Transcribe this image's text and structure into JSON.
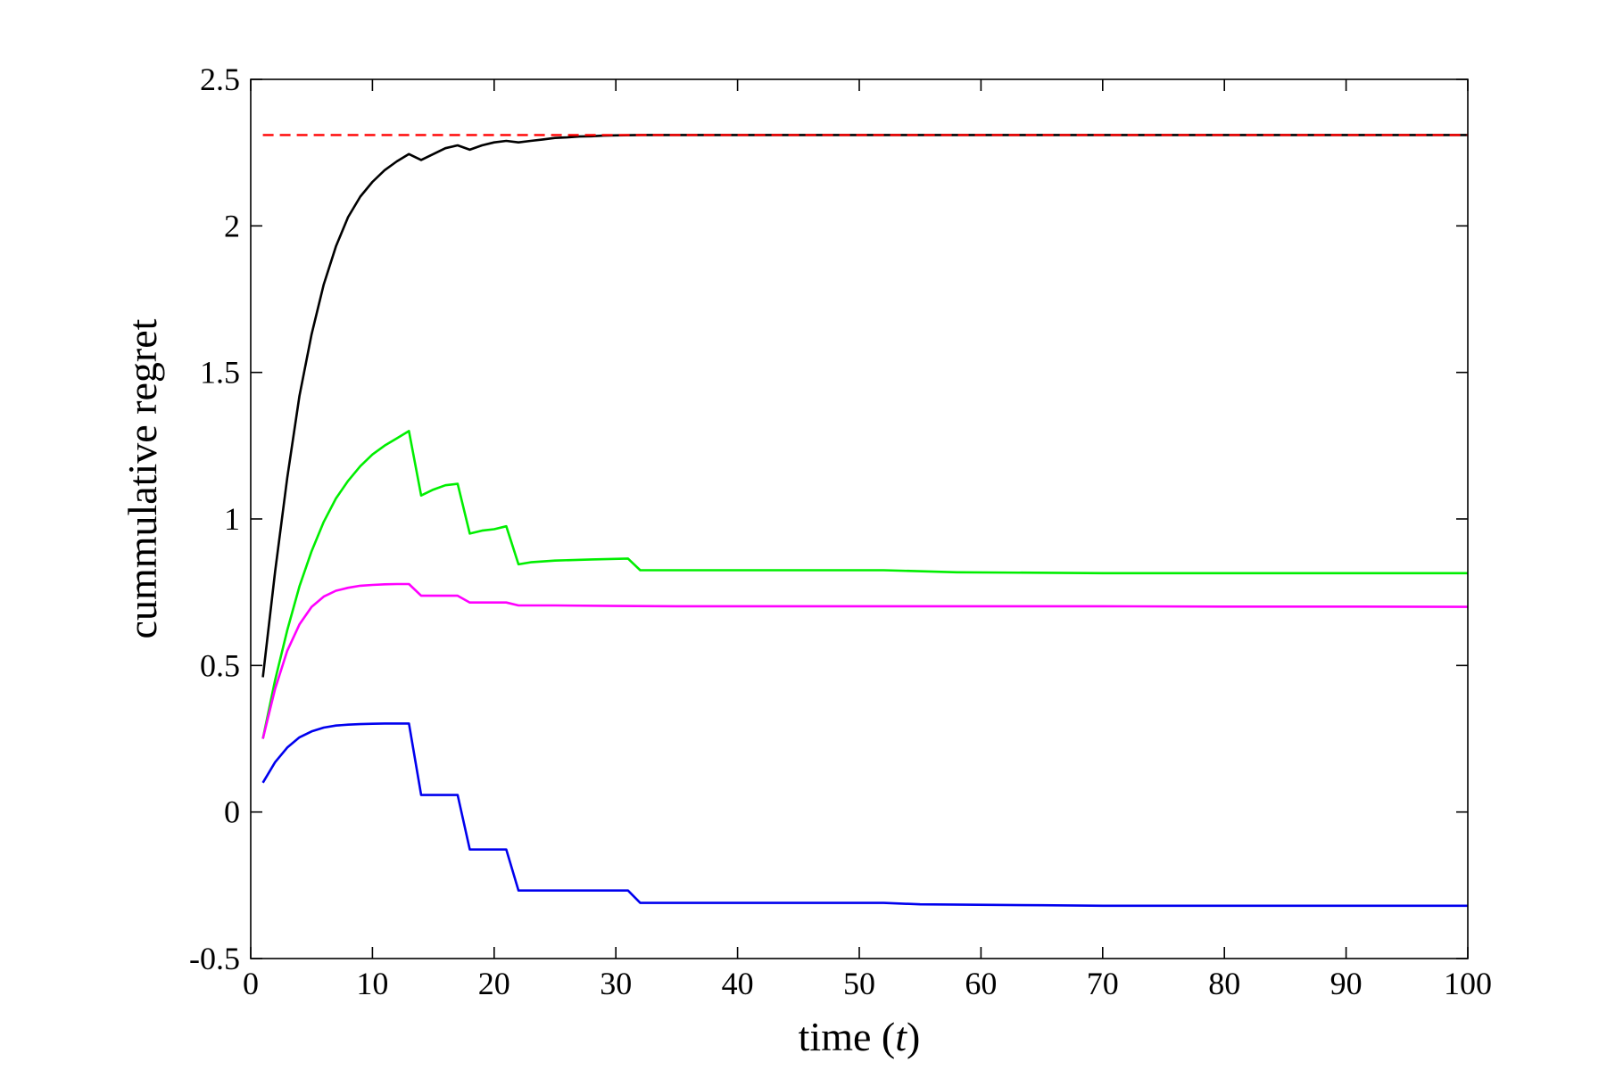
{
  "chart_data": {
    "type": "line",
    "title": "",
    "xlabel": "time (t)",
    "xlabel_parts": {
      "prefix": "time (",
      "var": "t",
      "suffix": ")"
    },
    "ylabel": "cummulative regret",
    "xlim": [
      0,
      100
    ],
    "ylim": [
      -0.5,
      2.5
    ],
    "x_ticks": [
      0,
      10,
      20,
      30,
      40,
      50,
      60,
      70,
      80,
      90,
      100
    ],
    "y_ticks": [
      -0.5,
      0,
      0.5,
      1,
      1.5,
      2,
      2.5
    ],
    "y_tick_labels": [
      "-0.5",
      "0",
      "0.5",
      "1",
      "1.5",
      "2",
      "2.5"
    ],
    "grid": false,
    "legend": "none",
    "series": [
      {
        "color": "#000000",
        "style": "solid",
        "x": [
          1,
          2,
          3,
          4,
          5,
          6,
          7,
          8,
          9,
          10,
          11,
          12,
          13,
          14,
          15,
          16,
          17,
          18,
          19,
          20,
          21,
          22,
          23,
          24,
          25,
          26,
          27,
          28,
          29,
          30,
          32,
          35,
          40,
          50,
          60,
          70,
          80,
          90,
          100
        ],
        "y": [
          0.46,
          0.82,
          1.14,
          1.42,
          1.63,
          1.8,
          1.93,
          2.03,
          2.1,
          2.15,
          2.19,
          2.22,
          2.245,
          2.225,
          2.245,
          2.265,
          2.275,
          2.26,
          2.275,
          2.285,
          2.29,
          2.285,
          2.29,
          2.295,
          2.3,
          2.302,
          2.305,
          2.306,
          2.308,
          2.309,
          2.31,
          2.31,
          2.31,
          2.31,
          2.31,
          2.31,
          2.31,
          2.31,
          2.31
        ]
      },
      {
        "color": "#00ee00",
        "style": "solid",
        "x": [
          1,
          2,
          3,
          4,
          5,
          6,
          7,
          8,
          9,
          10,
          11,
          12,
          13,
          14,
          15,
          16,
          17,
          18,
          19,
          20,
          21,
          22,
          23,
          25,
          28,
          31,
          32,
          40,
          52,
          58,
          70,
          80,
          90,
          100
        ],
        "y": [
          0.25,
          0.45,
          0.62,
          0.77,
          0.89,
          0.99,
          1.07,
          1.13,
          1.18,
          1.22,
          1.25,
          1.275,
          1.3,
          1.08,
          1.1,
          1.115,
          1.12,
          0.95,
          0.96,
          0.965,
          0.975,
          0.845,
          0.852,
          0.858,
          0.862,
          0.865,
          0.825,
          0.825,
          0.825,
          0.818,
          0.815,
          0.815,
          0.815,
          0.815
        ]
      },
      {
        "color": "#ff00ff",
        "style": "solid",
        "x": [
          1,
          2,
          3,
          4,
          5,
          6,
          7,
          8,
          9,
          10,
          11,
          12,
          13,
          14,
          15,
          16,
          17,
          18,
          19,
          20,
          21,
          22,
          25,
          30,
          35,
          40,
          50,
          60,
          70,
          80,
          90,
          100
        ],
        "y": [
          0.25,
          0.42,
          0.55,
          0.64,
          0.7,
          0.735,
          0.755,
          0.765,
          0.772,
          0.775,
          0.777,
          0.778,
          0.778,
          0.738,
          0.738,
          0.738,
          0.738,
          0.715,
          0.715,
          0.715,
          0.715,
          0.705,
          0.705,
          0.703,
          0.702,
          0.702,
          0.702,
          0.702,
          0.702,
          0.701,
          0.701,
          0.7
        ]
      },
      {
        "color": "#0000ee",
        "style": "solid",
        "x": [
          1,
          2,
          3,
          4,
          5,
          6,
          7,
          8,
          9,
          10,
          11,
          12,
          13,
          14,
          15,
          16,
          17,
          18,
          19,
          20,
          21,
          22,
          23,
          25,
          28,
          31,
          32,
          40,
          52,
          55,
          65,
          70,
          80,
          90,
          100
        ],
        "y": [
          0.1,
          0.17,
          0.22,
          0.255,
          0.275,
          0.288,
          0.295,
          0.298,
          0.3,
          0.301,
          0.302,
          0.302,
          0.302,
          0.058,
          0.058,
          0.058,
          0.058,
          -0.128,
          -0.128,
          -0.128,
          -0.128,
          -0.268,
          -0.268,
          -0.268,
          -0.268,
          -0.268,
          -0.31,
          -0.31,
          -0.31,
          -0.315,
          -0.318,
          -0.32,
          -0.32,
          -0.32,
          -0.32
        ]
      },
      {
        "color": "#ff0000",
        "style": "dashed",
        "x": [
          1,
          100
        ],
        "y": [
          2.31,
          2.31
        ]
      }
    ]
  }
}
